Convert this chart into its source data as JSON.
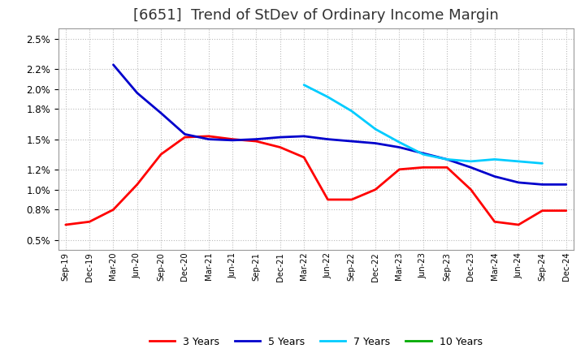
{
  "title": "[6651]  Trend of StDev of Ordinary Income Margin",
  "background_color": "#ffffff",
  "grid_color": "#aaaaaa",
  "title_fontsize": 13,
  "legend_entries": [
    "3 Years",
    "5 Years",
    "7 Years",
    "10 Years"
  ],
  "legend_colors": [
    "#ff0000",
    "#0000cc",
    "#00ccff",
    "#00aa00"
  ],
  "x_labels": [
    "Sep-19",
    "Dec-19",
    "Mar-20",
    "Jun-20",
    "Sep-20",
    "Dec-20",
    "Mar-21",
    "Jun-21",
    "Sep-21",
    "Dec-21",
    "Mar-22",
    "Jun-22",
    "Sep-22",
    "Dec-22",
    "Mar-23",
    "Jun-23",
    "Sep-23",
    "Dec-23",
    "Mar-24",
    "Jun-24",
    "Sep-24",
    "Dec-24"
  ],
  "ytick_vals": [
    0.005,
    0.008,
    0.01,
    0.012,
    0.015,
    0.018,
    0.02,
    0.022,
    0.025
  ],
  "ytick_labels": [
    "0.5%",
    "0.8%",
    "1.0%",
    "1.2%",
    "1.5%",
    "1.8%",
    "2.0%",
    "2.2%",
    "2.5%"
  ],
  "ylim": [
    0.004,
    0.026
  ],
  "series_3y": [
    0.0065,
    0.0068,
    0.008,
    0.0105,
    0.0135,
    0.0152,
    0.0153,
    0.015,
    0.0148,
    0.0142,
    0.0132,
    0.009,
    0.009,
    0.01,
    0.012,
    0.0122,
    0.0122,
    0.01,
    0.0068,
    0.0065,
    0.0079,
    0.0079
  ],
  "series_5y": [
    null,
    null,
    0.0224,
    0.0196,
    0.0176,
    0.0155,
    0.015,
    0.0149,
    0.015,
    0.0152,
    0.0153,
    0.015,
    0.0148,
    0.0146,
    0.0142,
    0.0136,
    0.013,
    0.0122,
    0.0113,
    0.0107,
    0.0105,
    0.0105
  ],
  "series_7y": [
    null,
    null,
    null,
    null,
    null,
    null,
    null,
    null,
    null,
    null,
    0.0204,
    0.0192,
    0.0178,
    0.016,
    0.0147,
    0.0135,
    0.013,
    0.0128,
    0.013,
    0.0128,
    0.0126,
    null
  ],
  "series_10y": [
    null,
    null,
    null,
    null,
    null,
    null,
    null,
    null,
    null,
    null,
    null,
    null,
    null,
    null,
    null,
    null,
    null,
    null,
    null,
    null,
    null,
    null
  ]
}
